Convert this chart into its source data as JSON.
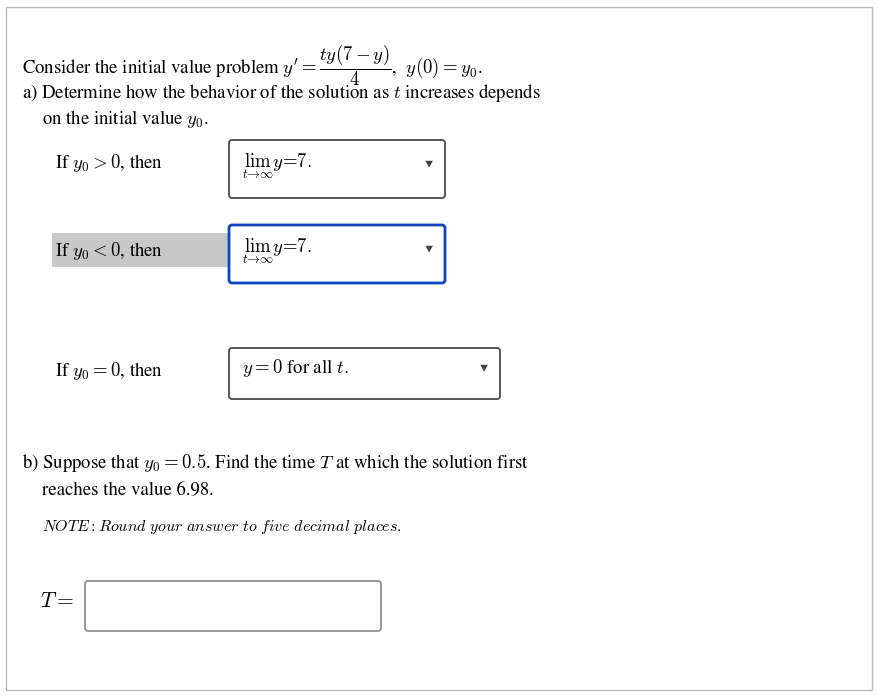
{
  "background_color": "#ffffff",
  "border_color": "#bbbbbb",
  "font_size": 13.5,
  "small_font_size": 11.5,
  "box1_border": "#555555",
  "box2_border": "#1144bb",
  "box3_border": "#555555",
  "Tbox_border": "#888888",
  "highlight2_color": "#c8c8c8",
  "arrow_color": "#444444"
}
